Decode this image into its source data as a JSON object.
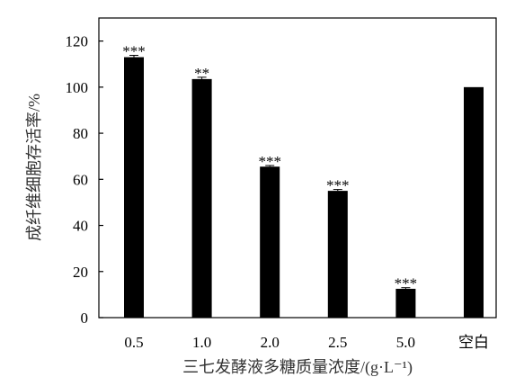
{
  "chart_data": {
    "type": "bar",
    "title": "",
    "xlabel": "三七发酵液多糖质量浓度/(g·L⁻¹)",
    "ylabel": "成纤维细胞存活率/%",
    "categories": [
      "0.5",
      "1.0",
      "2.0",
      "2.5",
      "5.0",
      "空白"
    ],
    "values": [
      113,
      103.5,
      65.5,
      55,
      12.5,
      100
    ],
    "error": [
      0.8,
      0.8,
      0.5,
      0.6,
      0.5,
      0
    ],
    "significance": [
      "***",
      "**",
      "***",
      "***",
      "***",
      ""
    ],
    "ylim": [
      0,
      130
    ],
    "yticks": [
      0,
      20,
      40,
      60,
      80,
      100,
      120
    ],
    "bar_color": "#000000",
    "grid": false,
    "legend": "none"
  }
}
